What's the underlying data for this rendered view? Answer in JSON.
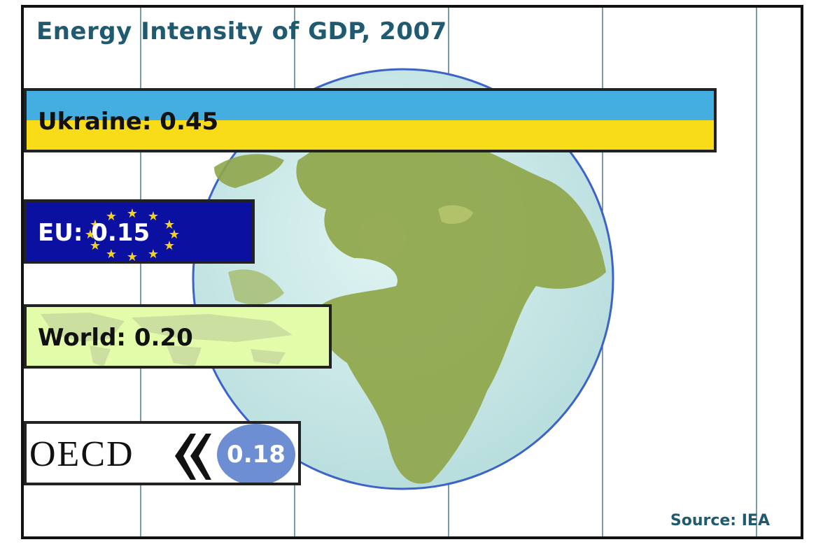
{
  "chart_data": {
    "type": "bar",
    "orientation": "horizontal",
    "title": "Energy Intensity of GDP, 2007",
    "source": "Source: IEA",
    "categories": [
      "Ukraine",
      "EU",
      "World",
      "OECD"
    ],
    "values": [
      0.45,
      0.15,
      0.2,
      0.18
    ],
    "labels": [
      "Ukraine: 0.45",
      "EU: 0.15",
      "World: 0.20",
      "0.18"
    ],
    "xlim": [
      0,
      0.5
    ],
    "grid": "vertical",
    "colors": {
      "ukraine_top": "#44aee0",
      "ukraine_bottom": "#f7dc17",
      "eu": "#0b10a0",
      "eu_star": "#f4d21c",
      "world": "#e2fca9",
      "oecd_ellipse": "#6d8ed2",
      "title": "#1f5a70",
      "ocean": "#cdeaea",
      "land": "#8fa64a"
    }
  },
  "oecd_logo_text": "OECD"
}
